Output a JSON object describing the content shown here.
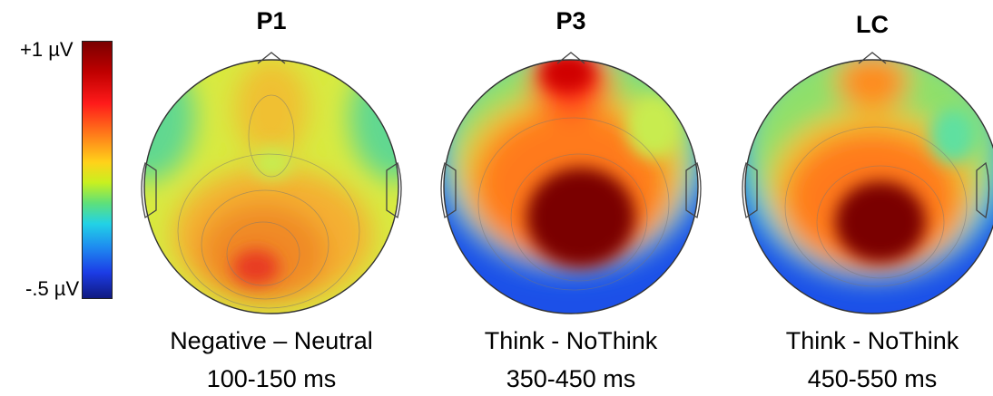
{
  "colorbar": {
    "max_label": "+1 µV",
    "min_label": "-.5 µV"
  },
  "maps": [
    {
      "title": "P1",
      "contrast": "Negative – Neutral",
      "window": "100-150 ms"
    },
    {
      "title": "P3",
      "contrast": "Think - NoThink",
      "window": "350-450 ms"
    },
    {
      "title": "LC",
      "contrast": "Think - NoThink",
      "window": "450-550 ms"
    }
  ],
  "colors": {
    "dark_red": "#7a0000",
    "red": "#e00000",
    "orange": "#ff8a1a",
    "yellow": "#e8e030",
    "green": "#7ee060",
    "cyan": "#30c8e0",
    "blue": "#1c50e8",
    "navy": "#101a80"
  }
}
